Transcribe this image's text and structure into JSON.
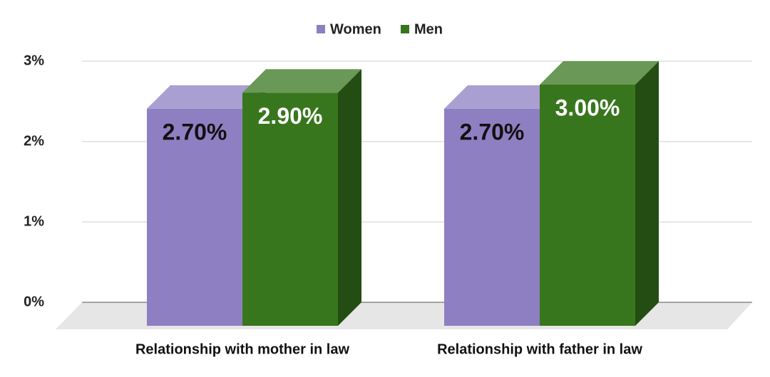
{
  "chart_data": {
    "type": "bar",
    "categories": [
      "Relationship with mother in law",
      "Relationship with father in law"
    ],
    "series": [
      {
        "name": "Women",
        "color": "#8e7fc2",
        "values": [
          2.7,
          2.7
        ],
        "value_labels": [
          "2.70%",
          "2.70%"
        ]
      },
      {
        "name": "Men",
        "color": "#38761d",
        "values": [
          2.9,
          3.0
        ],
        "value_labels": [
          "2.90%",
          "3.00%"
        ]
      }
    ],
    "ylim": [
      0,
      3
    ],
    "yticks": [
      {
        "value": 0,
        "label": "0%"
      },
      {
        "value": 1,
        "label": "1%"
      },
      {
        "value": 2,
        "label": "2%"
      },
      {
        "value": 3,
        "label": "3%"
      }
    ],
    "grid": true,
    "legend": "top"
  }
}
